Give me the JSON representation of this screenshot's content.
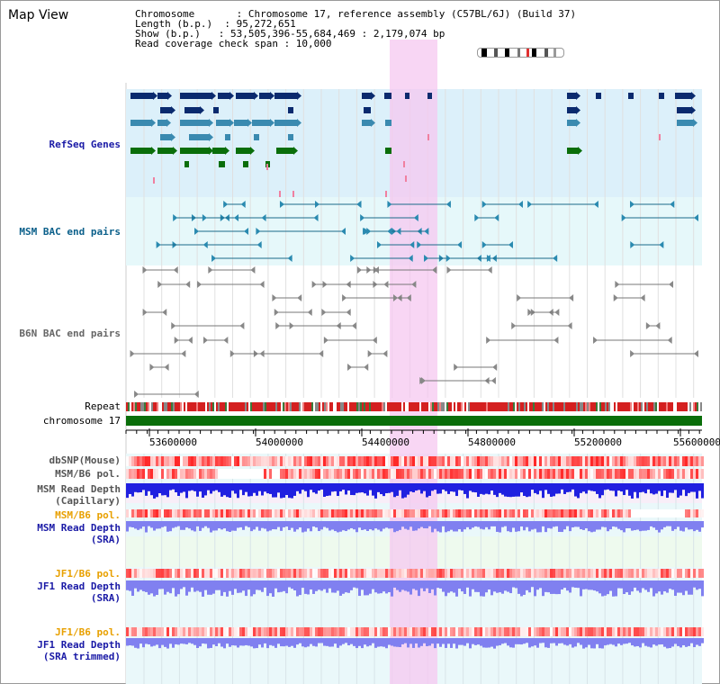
{
  "header": {
    "title": "Map View",
    "info_lines": [
      "Chromosome       : Chromosome 17, reference assembly (C57BL/6J) (Build 37)",
      "Length (b.p.)  : 95,272,651",
      "Show (b.p.)   : 53,505,396-55,684,469 : 2,179,074 bp",
      "Read coverage check span : 10,000"
    ]
  },
  "tracks": {
    "refseq": "RefSeq Genes",
    "msm_bac": "MSM BAC end pairs",
    "b6n_bac": "B6N BAC end pairs",
    "repeat": "Repeat",
    "chromosome": "chromosome 17",
    "dbsnp": "dbSNP(Mouse)",
    "msm_b6_pol": "MSM/B6 pol.",
    "msm_read_depth_cap_1": "MSM Read Depth",
    "msm_read_depth_cap_2": "(Capillary)",
    "msm_b6_pol_2": "MSM/B6 pol.",
    "msm_read_depth_sra_1": "MSM Read Depth",
    "msm_read_depth_sra_2": "(SRA)",
    "jf1_b6_pol": "JF1/B6 pol.",
    "jf1_read_depth_sra_1": "JF1 Read Depth",
    "jf1_read_depth_sra_2": "(SRA)",
    "jf1_b6_pol_2": "JF1/B6 pol.",
    "jf1_read_depth_trim_1": "JF1 Read Depth",
    "jf1_read_depth_trim_2": "(SRA trimmed)"
  },
  "axis": {
    "ticks": [
      "53600000",
      "54000000",
      "54400000",
      "54800000",
      "55200000",
      "55600000"
    ]
  },
  "colors": {
    "refseq_bg": "#dcf0fa",
    "bac_bg": "#e6f8fa",
    "highlight": "#f5c8f0",
    "chrom": "#0a6e0a",
    "gene_dark": "#0a2a6e",
    "gene_mid": "#3a8ab0",
    "gene_green": "#0a6e0a",
    "depth_blue": "#2020e0",
    "depth_light": "#8080f0",
    "pol_red": "#e83030"
  }
}
